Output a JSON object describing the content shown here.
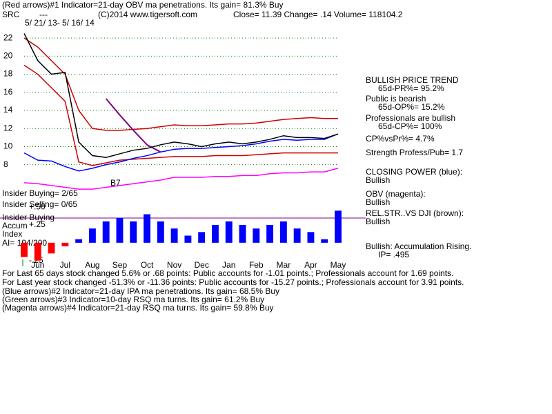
{
  "chart_data": [
    {
      "type": "line",
      "title": "(Red arrows)#1 Indicator=21-day OBV ma penetrations. Its gain= 81.3% Buy",
      "categories": [
        null,
        "Jun",
        null,
        "Jul",
        null,
        "Aug",
        null,
        "Sep",
        null,
        "Oct",
        null,
        "Nov",
        null,
        "Dec",
        null,
        "Jan",
        null,
        "Feb",
        null,
        "Mar",
        null,
        "Apr",
        null,
        "May"
      ],
      "series": [
        {
          "color": "#cc0000",
          "values": [
            22,
            21,
            19.5,
            18,
            14,
            12,
            11.8,
            11.8,
            11.9,
            12,
            12.2,
            12.4,
            12.3,
            12.3,
            12.4,
            12.5,
            12.5,
            12.6,
            12.8,
            13,
            13.1,
            13.2,
            13.1,
            13.1
          ]
        },
        {
          "color": "#cc0000",
          "values": [
            19,
            18,
            16.5,
            15,
            8.3,
            7.9,
            8.2,
            8.5,
            8.6,
            8.7,
            8.8,
            8.9,
            8.9,
            8.9,
            9,
            9,
            9,
            9.1,
            9.2,
            9.3,
            9.3,
            9.3,
            9.3,
            9.3
          ]
        },
        {
          "color": "#ff00ff",
          "values": [
            6,
            5.9,
            5.7,
            5.5,
            5.3,
            5.3,
            5.5,
            5.7,
            5.9,
            6.1,
            6.3,
            6.6,
            6.6,
            6.6,
            6.7,
            6.7,
            6.8,
            6.8,
            7,
            7.1,
            7.1,
            7.2,
            7.2,
            7.6
          ]
        },
        {
          "color": "#0000ff",
          "values": [
            9.3,
            8.5,
            8.4,
            7.8,
            7.3,
            7.6,
            8,
            8.3,
            8.7,
            9,
            9.4,
            9.7,
            9.8,
            9.8,
            9.9,
            10,
            10.1,
            10.3,
            10.6,
            10.8,
            10.7,
            10.8,
            10.8,
            11.4
          ]
        },
        {
          "color": "#800080",
          "values": [
            null,
            null,
            null,
            null,
            null,
            null,
            15.3,
            13.5,
            11.8,
            10.2,
            9.4,
            null,
            null,
            null,
            null,
            null,
            null,
            null,
            null,
            null,
            null,
            null,
            null,
            null
          ]
        },
        {
          "color": "#000000",
          "values": [
            22.5,
            19.5,
            18,
            18.2,
            10.5,
            9,
            8.8,
            9.2,
            9.6,
            9.8,
            10.2,
            10.5,
            10.3,
            10,
            10.3,
            10.5,
            10.3,
            10.5,
            10.8,
            11.2,
            11,
            11,
            10.9,
            11.39
          ]
        }
      ],
      "ylim": [
        5,
        23
      ],
      "yticks": [
        8,
        10,
        12,
        14,
        16,
        18,
        20,
        22
      ],
      "grid": true,
      "grid_color": "#008000",
      "annotations": [
        "SRC",
        "---",
        "(C)2014 www.tigersoft.com",
        "Close=  11.39  Change= .14 Volume= 118104.2",
        "5/ 21/ 13- 5/ 16/ 14",
        "BULLISH PRICE TREND",
        "65d-PR%= 95.2%",
        "Public is bearish",
        "65d-OP%= 15.2%",
        "Professionals are bullish",
        "65d-CP%= 100%",
        "CP%vsPr%=  4.7%",
        "Strength Profess/Pub= 1.7",
        "CLOSING POWER (blue):",
        "Bullish",
        "OBV (magenta):",
        "Bullish",
        "REL.STR..VS DJI (brown):",
        "Bullish",
        "Bullish: Accumulation Rising.",
        "IP=  .495",
        "Insider Buying= 2/65",
        "Insider Selling= 0/65",
        "Insider Buying",
        "Accum",
        "Index",
        "AI= 194/200",
        "B7",
        "For Last 65 days stock changed  5.6% or  .68 points:  Public accounts for -1.01 points.;  Professionals account for  1.69 points.",
        "For Last year stock changed -51.3% or -11.36 points:  Public accounts for -15.27 points.;  Professionals account for  3.91 points.",
        "(Blue arrows)#2 Indicator=21-day IPA ma penetrations. Its gain= 68.5% Buy",
        "(Green arrows)#3 Indicator=10-day RSQ ma turns. Its gain= 61.2% Buy",
        "(Magenta arrows)#4 Indicator=21-day RSQ ma turns. Its gain= 59.8% Buy"
      ]
    },
    {
      "type": "bar",
      "values": [
        -0.2,
        -0.25,
        -0.15,
        -0.05,
        0.05,
        0.2,
        0.3,
        0.35,
        0.3,
        0.4,
        0.3,
        0.2,
        0.1,
        0.15,
        0.25,
        0.3,
        0.25,
        0.2,
        0.25,
        0.3,
        0.2,
        0.15,
        0.05,
        0.45
      ],
      "positive_color": "#0000ff",
      "negative_color": "#ff0000",
      "ylim": [
        -0.35,
        0.55
      ],
      "yticks": [
        {
          "value": 0.5,
          "label": "+.50"
        },
        {
          "value": 0.25,
          "label": "+.25"
        },
        {
          "value": -0.25,
          "label": "-.25"
        }
      ]
    }
  ]
}
